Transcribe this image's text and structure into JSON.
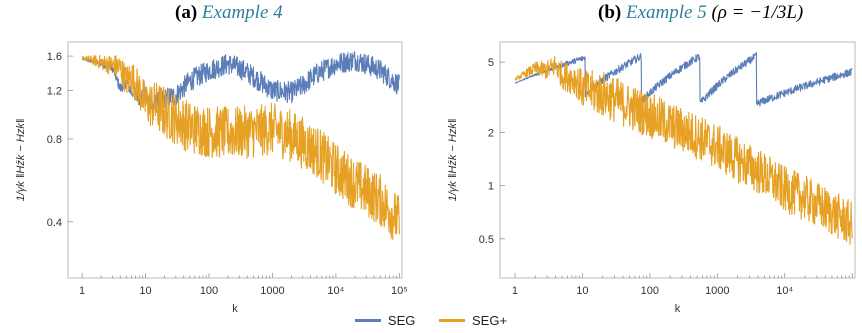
{
  "panels": [
    {
      "tag": "(a)",
      "example": "Example 4",
      "title_suffix": ""
    },
    {
      "tag": "(b)",
      "example": "Example 5",
      "title_suffix": "(ρ = −1/3L)"
    }
  ],
  "legend": [
    "SEG",
    "SEG+"
  ],
  "colors": {
    "SEG": "#5b7db8",
    "SEG+": "#e6a024"
  },
  "chart_data": [
    {
      "type": "line",
      "xlabel": "k",
      "ylabel": "1/γk ‖Hz̄k − Hzk‖",
      "x_scale": "log",
      "y_scale": "log",
      "xlim": [
        0.6,
        110000
      ],
      "ylim": [
        0.25,
        1.8
      ],
      "x_ticks": [
        "1",
        "10",
        "100",
        "1000",
        "10⁴",
        "10⁵"
      ],
      "x_tick_values": [
        1,
        10,
        100,
        1000,
        10000,
        100000
      ],
      "y_ticks": [
        "1.6",
        "1.2",
        "0.8",
        "0.4"
      ],
      "y_tick_values": [
        1.6,
        1.2,
        0.8,
        0.4
      ],
      "series": [
        {
          "name": "SEG",
          "x": [
            1,
            2,
            3,
            4,
            5,
            6,
            7,
            8,
            10,
            12,
            15,
            20,
            30,
            50,
            100,
            200,
            300,
            500,
            1000,
            2000,
            3000,
            5000,
            10000,
            20000,
            30000,
            50000,
            100000
          ],
          "values": [
            1.56,
            1.5,
            1.45,
            1.22,
            1.3,
            1.18,
            1.22,
            1.12,
            1.15,
            1.05,
            1.08,
            1.12,
            1.15,
            1.3,
            1.42,
            1.5,
            1.45,
            1.35,
            1.2,
            1.18,
            1.25,
            1.38,
            1.5,
            1.55,
            1.5,
            1.42,
            1.25
          ],
          "noise": 0.09
        },
        {
          "name": "SEG+",
          "x": [
            1,
            2,
            3,
            4,
            5,
            6,
            8,
            10,
            15,
            20,
            30,
            50,
            100,
            200,
            500,
            1000,
            2000,
            5000,
            10000,
            20000,
            50000,
            100000
          ],
          "values": [
            1.58,
            1.52,
            1.48,
            1.45,
            1.3,
            1.35,
            1.2,
            1.08,
            1.05,
            1.0,
            0.95,
            0.88,
            0.85,
            0.84,
            0.85,
            0.87,
            0.82,
            0.72,
            0.62,
            0.55,
            0.48,
            0.4
          ],
          "noise": 0.22
        }
      ]
    },
    {
      "type": "line",
      "xlabel": "k",
      "ylabel": "1/γk ‖Hz̄k − Hzk‖",
      "x_scale": "log",
      "y_scale": "log",
      "xlim": [
        0.6,
        110000
      ],
      "ylim": [
        0.3,
        6.5
      ],
      "x_ticks": [
        "1",
        "10",
        "100",
        "1000",
        "10⁴"
      ],
      "x_tick_values": [
        1,
        10,
        100,
        1000,
        10000
      ],
      "y_ticks": [
        "5",
        "2",
        "1",
        "0.5"
      ],
      "y_tick_values": [
        5,
        2,
        1,
        0.5
      ],
      "series": [
        {
          "name": "SEG",
          "sawtooth": {
            "drops_at": [
              11,
              75,
              550,
              3800
            ],
            "peaks": [
              5.3,
              5.4,
              5.4,
              5.4
            ],
            "floors": [
              3.3,
              3.0,
              2.9,
              2.9
            ],
            "start": [
              1,
              3.8
            ],
            "end": [
              100000,
              4.4
            ]
          },
          "noise": 0.05
        },
        {
          "name": "SEG+",
          "x": [
            1,
            2,
            3,
            4,
            5,
            8,
            10,
            20,
            50,
            100,
            200,
            500,
            1000,
            2000,
            5000,
            10000,
            20000,
            50000,
            100000
          ],
          "values": [
            4.0,
            4.6,
            4.5,
            4.8,
            4.2,
            4.0,
            3.5,
            3.3,
            2.8,
            2.5,
            2.2,
            1.9,
            1.65,
            1.4,
            1.15,
            0.95,
            0.85,
            0.7,
            0.6
          ],
          "noise": 0.3
        }
      ]
    }
  ]
}
